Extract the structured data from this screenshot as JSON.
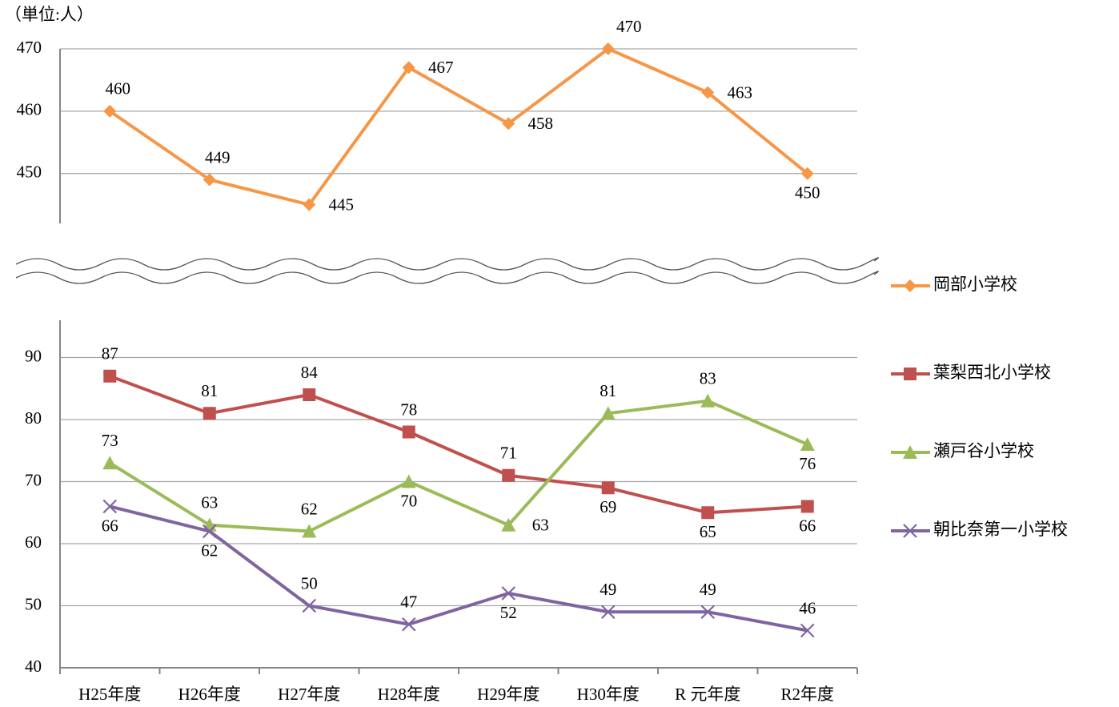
{
  "chart_data": [
    {
      "type": "line",
      "unit_label": "（単位:人）",
      "series": [
        {
          "name": "岡部小学校",
          "color": "#f79646",
          "marker": "diamond",
          "values": [
            460,
            449,
            445,
            467,
            458,
            470,
            463,
            450
          ]
        }
      ],
      "ylim": [
        442,
        470
      ],
      "yticks": [
        450,
        460,
        470
      ],
      "grid": true
    },
    {
      "type": "line",
      "categories": [
        "H25年度",
        "H26年度",
        "H27年度",
        "H28年度",
        "H29年度",
        "H30年度",
        "R 元年度",
        "R2年度"
      ],
      "series": [
        {
          "name": "葉梨西北小学校",
          "color": "#c0504d",
          "marker": "square",
          "values": [
            87,
            81,
            84,
            78,
            71,
            69,
            65,
            66
          ]
        },
        {
          "name": "瀬戸谷小学校",
          "color": "#9bbb59",
          "marker": "triangle",
          "values": [
            73,
            63,
            62,
            70,
            63,
            81,
            83,
            76
          ]
        },
        {
          "name": "朝比奈第一小学校",
          "color": "#8064a2",
          "marker": "x",
          "values": [
            66,
            62,
            50,
            47,
            52,
            49,
            49,
            46
          ]
        }
      ],
      "ylim": [
        40,
        96
      ],
      "yticks": [
        40,
        50,
        60,
        70,
        80,
        90
      ],
      "grid": true
    }
  ]
}
